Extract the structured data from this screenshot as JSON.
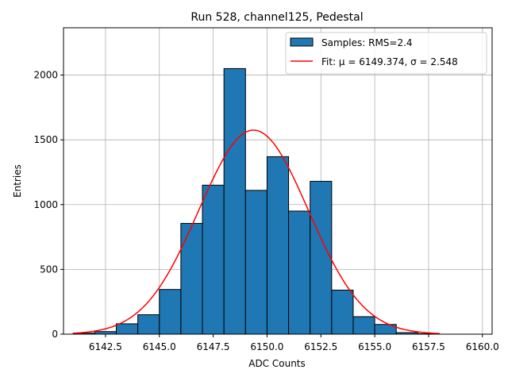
{
  "chart_data": {
    "type": "bar",
    "title": "Run 528, channel125, Pedestal",
    "xlabel": "ADC Counts",
    "ylabel": "Entries",
    "xlim": [
      6140.55,
      6160.45
    ],
    "ylim": [
      0,
      2365
    ],
    "xticks": [
      6142.5,
      6145.0,
      6147.5,
      6150.0,
      6152.5,
      6155.0,
      6157.5,
      6160.0
    ],
    "xtick_labels": [
      "6142.5",
      "6145.0",
      "6147.5",
      "6150.0",
      "6152.5",
      "6155.0",
      "6157.5",
      "6160.0"
    ],
    "yticks": [
      0,
      500,
      1000,
      1500,
      2000
    ],
    "ytick_labels": [
      "0",
      "500",
      "1000",
      "1500",
      "2000"
    ],
    "grid": true,
    "bin_width": 1,
    "bins": [
      {
        "left": 6141,
        "count": 8
      },
      {
        "left": 6142,
        "count": 20
      },
      {
        "left": 6143,
        "count": 80
      },
      {
        "left": 6144,
        "count": 150
      },
      {
        "left": 6145,
        "count": 345
      },
      {
        "left": 6146,
        "count": 855
      },
      {
        "left": 6147,
        "count": 1150
      },
      {
        "left": 6148,
        "count": 2050
      },
      {
        "left": 6149,
        "count": 1110
      },
      {
        "left": 6150,
        "count": 1370
      },
      {
        "left": 6151,
        "count": 950
      },
      {
        "left": 6152,
        "count": 1180
      },
      {
        "left": 6153,
        "count": 340
      },
      {
        "left": 6154,
        "count": 135
      },
      {
        "left": 6155,
        "count": 75
      },
      {
        "left": 6156,
        "count": 12
      },
      {
        "left": 6157,
        "count": 4
      }
    ],
    "fit": {
      "mu": 6149.374,
      "sigma": 2.548,
      "amplitude": 1575,
      "x_range": [
        6141,
        6158
      ]
    },
    "colors": {
      "bar": "#1f77b4",
      "fit": "#ff0000"
    },
    "legend": {
      "position": "top-right",
      "entries": [
        {
          "label": "Samples: RMS=2.4",
          "kind": "patch"
        },
        {
          "label": "Fit: μ = 6149.374, σ = 2.548",
          "kind": "line"
        }
      ]
    }
  }
}
